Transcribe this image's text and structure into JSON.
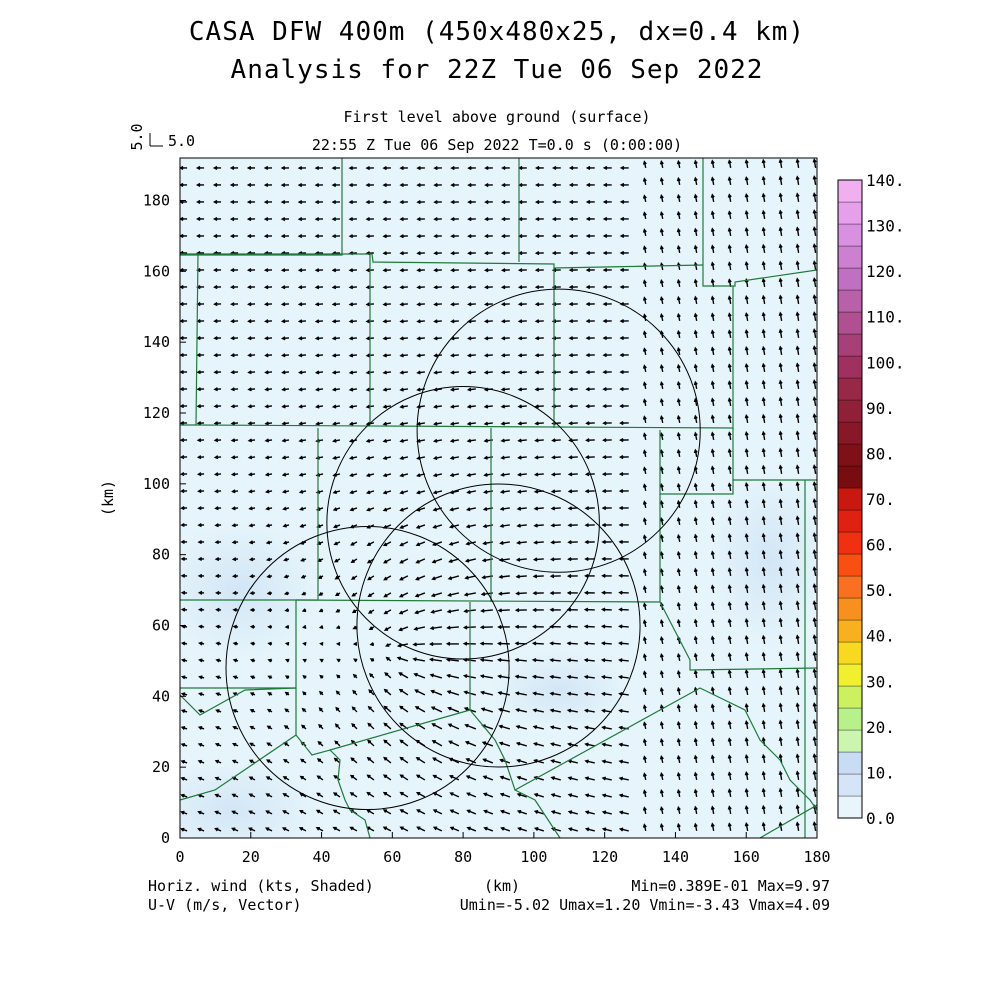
{
  "header": {
    "title_line1": "CASA DFW 400m (450x480x25, dx=0.4 km)",
    "title_line2": "Analysis for 22Z Tue 06 Sep 2022",
    "level_label": "First level above ground (surface)",
    "time_label": "22:55 Z Tue 06 Sep 2022    T=0.0 s (0:00:00)",
    "ref_vector_label_vertical": "5.0",
    "ref_vector_label_horizontal": "5.0"
  },
  "axes": {
    "x_label": "(km)",
    "y_label": "(km)",
    "x_ticks": [
      "0",
      "20",
      "40",
      "60",
      "80",
      "100",
      "120",
      "140",
      "160",
      "180"
    ],
    "y_ticks": [
      "0",
      "20",
      "40",
      "60",
      "80",
      "100",
      "120",
      "140",
      "160",
      "180"
    ],
    "x_range_km": [
      0,
      180
    ],
    "y_range_km": [
      0,
      192
    ]
  },
  "colorbar": {
    "labels": [
      "0.0",
      "10.",
      "20.",
      "30.",
      "40.",
      "50.",
      "60.",
      "70.",
      "80.",
      "90.",
      "100.",
      "110.",
      "120.",
      "130.",
      "140."
    ],
    "colors": [
      "#e8f6fb",
      "#d6e4f7",
      "#c8ddf3",
      "#ccf5b0",
      "#b8f08a",
      "#ccf060",
      "#f0f030",
      "#f8d820",
      "#f8b020",
      "#f89020",
      "#f87020",
      "#f85010",
      "#f03010",
      "#e02010",
      "#c81810",
      "#780c10",
      "#801018",
      "#881828",
      "#902038",
      "#982848",
      "#a03060",
      "#a84078",
      "#b05090",
      "#b860a8",
      "#c070c0",
      "#cc80d0",
      "#d890e0",
      "#e4a0e8",
      "#f0b0f0"
    ]
  },
  "footer": {
    "left_line1": "Horiz. wind (kts, Shaded)",
    "left_line2": "U-V (m/s, Vector)",
    "center": "(km)",
    "right_line1": "Min=0.389E-01 Max=9.97",
    "right_line2": "Umin=-5.02 Umax=1.20 Vmin=-3.43 Vmax=4.09"
  },
  "radar_rings": [
    {
      "name": "radar-ring-northeast",
      "center_km": [
        107,
        115
      ],
      "radius_km": 40
    },
    {
      "name": "radar-ring-north-central",
      "center_km": [
        80,
        89
      ],
      "radius_km": 38.5
    },
    {
      "name": "radar-ring-central",
      "center_km": [
        90,
        60
      ],
      "radius_km": 40
    },
    {
      "name": "radar-ring-southwest",
      "center_km": [
        53,
        48
      ],
      "radius_km": 40
    }
  ],
  "colors": {
    "field_base": "#e6f5fb",
    "county_lines": "#1f7a3a",
    "rings": "#000000",
    "vectors": "#000000"
  }
}
